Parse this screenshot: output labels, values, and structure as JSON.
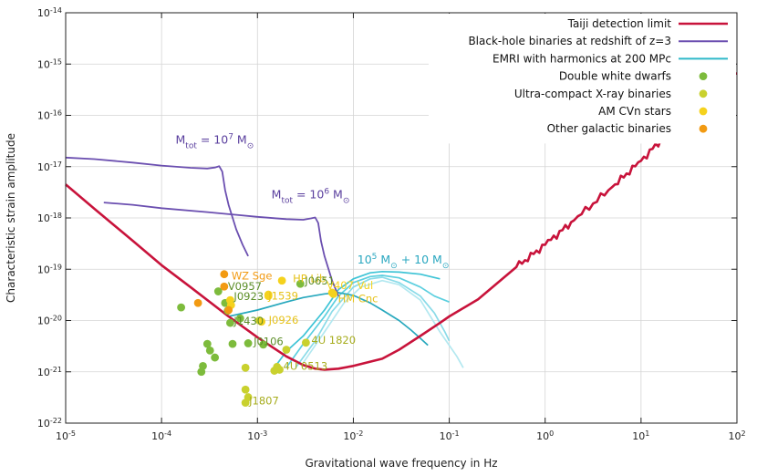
{
  "chart_data": {
    "type": "line",
    "xlabel": "Gravitational wave frequency in Hz",
    "ylabel": "Characteristic strain amplitude",
    "xscale": "log",
    "yscale": "log",
    "xlim": [
      1e-05,
      100
    ],
    "ylim": [
      1e-22,
      1e-14
    ],
    "grid": true,
    "legend_position": "top-right",
    "x_ticks": [
      {
        "value": 1e-05,
        "base": "10",
        "exp": "-5"
      },
      {
        "value": 0.0001,
        "base": "10",
        "exp": "-4"
      },
      {
        "value": 0.001,
        "base": "10",
        "exp": "-3"
      },
      {
        "value": 0.01,
        "base": "10",
        "exp": "-2"
      },
      {
        "value": 0.1,
        "base": "10",
        "exp": "-1"
      },
      {
        "value": 1,
        "base": "10",
        "exp": "0"
      },
      {
        "value": 10,
        "base": "10",
        "exp": "1"
      },
      {
        "value": 100,
        "base": "10",
        "exp": "2"
      }
    ],
    "y_ticks": [
      {
        "value": 1e-14,
        "base": "10",
        "exp": "-14"
      },
      {
        "value": 1e-15,
        "base": "10",
        "exp": "-15"
      },
      {
        "value": 1e-16,
        "base": "10",
        "exp": "-16"
      },
      {
        "value": 1e-17,
        "base": "10",
        "exp": "-17"
      },
      {
        "value": 1e-18,
        "base": "10",
        "exp": "-18"
      },
      {
        "value": 1e-19,
        "base": "10",
        "exp": "-19"
      },
      {
        "value": 1e-20,
        "base": "10",
        "exp": "-20"
      },
      {
        "value": 1e-21,
        "base": "10",
        "exp": "-21"
      },
      {
        "value": 1e-22,
        "base": "10",
        "exp": "-22"
      }
    ],
    "legend": [
      {
        "label": "Taiji detection limit",
        "kind": "line",
        "color": "#c8133b"
      },
      {
        "label": "Black-hole binaries at redshift of z=3",
        "kind": "line",
        "color": "#6b4fb0"
      },
      {
        "label": "EMRI with harmonics at 200 MPc",
        "kind": "line",
        "color": "#2fb9c9"
      },
      {
        "label": "Double white dwarfs",
        "kind": "dot",
        "color": "#7dbb3c"
      },
      {
        "label": "Ultra-compact X-ray binaries",
        "kind": "dot",
        "color": "#c9d12e"
      },
      {
        "label": "AM CVn stars",
        "kind": "dot",
        "color": "#f5d21d"
      },
      {
        "label": "Other galactic binaries",
        "kind": "dot",
        "color": "#f29a12"
      }
    ],
    "series": [
      {
        "name": "Taiji detection limit",
        "color": "#c8133b",
        "points": [
          [
            1e-05,
            4.5e-18
          ],
          [
            2e-05,
            1.5e-18
          ],
          [
            5e-05,
            3.6e-19
          ],
          [
            0.0001,
            1.2e-19
          ],
          [
            0.0002,
            4.5e-20
          ],
          [
            0.0005,
            1.2e-20
          ],
          [
            0.001,
            4.7e-21
          ],
          [
            0.002,
            2e-21
          ],
          [
            0.003,
            1.35e-21
          ],
          [
            0.004,
            1.15e-21
          ],
          [
            0.005,
            1.1e-21
          ],
          [
            0.007,
            1.15e-21
          ],
          [
            0.01,
            1.3e-21
          ],
          [
            0.02,
            1.8e-21
          ],
          [
            0.03,
            2.7e-21
          ],
          [
            0.05,
            5e-21
          ],
          [
            0.08,
            9e-21
          ],
          [
            0.1,
            1.2e-20
          ],
          [
            0.2,
            2.6e-20
          ],
          [
            0.5,
            1.1e-19
          ],
          [
            1,
            3e-19
          ],
          [
            2,
            9e-19
          ],
          [
            5,
            4e-18
          ],
          [
            10,
            1.3e-17
          ],
          [
            20,
            5e-17
          ],
          [
            50,
            2.4e-16
          ],
          [
            100,
            6.5e-16
          ]
        ]
      },
      {
        "name": "",
        "color": "#6b4fb0",
        "annotation": {
          "main": "M",
          "sub": "tot",
          "mid": " = 10",
          "sup": "7",
          "tail": " M",
          "tailsub": "⊙",
          "x": 0.00014,
          "y": 2.8e-17
        },
        "points": [
          [
            1e-05,
            1.5e-17
          ],
          [
            2e-05,
            1.4e-17
          ],
          [
            5e-05,
            1.2e-17
          ],
          [
            0.0001,
            1.05e-17
          ],
          [
            0.0002,
            9.5e-18
          ],
          [
            0.0003,
            9.2e-18
          ],
          [
            0.00036,
            9.6e-18
          ],
          [
            0.0004,
            1.02e-17
          ],
          [
            0.00043,
            8e-18
          ],
          [
            0.00046,
            3.5e-18
          ],
          [
            0.0005,
            1.8e-18
          ],
          [
            0.0006,
            6e-19
          ],
          [
            0.0007,
            3e-19
          ],
          [
            0.0008,
            1.8e-19
          ]
        ]
      },
      {
        "name": "",
        "color": "#6b4fb0",
        "annotation": {
          "main": "M",
          "sub": "tot",
          "mid": " = 10",
          "sup": "6",
          "tail": " M",
          "tailsub": "⊙",
          "x": 0.0014,
          "y": 2.4e-18
        },
        "points": [
          [
            2.5e-05,
            2e-18
          ],
          [
            5e-05,
            1.8e-18
          ],
          [
            0.0001,
            1.55e-18
          ],
          [
            0.0003,
            1.3e-18
          ],
          [
            0.001,
            1.05e-18
          ],
          [
            0.002,
            9.5e-19
          ],
          [
            0.003,
            9.2e-19
          ],
          [
            0.0036,
            9.8e-19
          ],
          [
            0.004,
            1.02e-18
          ],
          [
            0.0043,
            8e-19
          ],
          [
            0.0046,
            3.5e-19
          ],
          [
            0.005,
            1.8e-19
          ],
          [
            0.006,
            6e-20
          ],
          [
            0.007,
            3e-20
          ]
        ]
      },
      {
        "name": "",
        "color": "#27a8bd",
        "annotation": {
          "main": "10",
          "sup": "5",
          "mid": " M",
          "sub": "⊙",
          "tail": " + 10 M",
          "tailsub": "⊙",
          "x": 0.011,
          "y": 1.3e-19
        },
        "points": [
          [
            0.0005,
            1.2e-20
          ],
          [
            0.001,
            1.6e-20
          ],
          [
            0.002,
            2.3e-20
          ],
          [
            0.003,
            2.8e-20
          ],
          [
            0.005,
            3.3e-20
          ],
          [
            0.007,
            3.5e-20
          ],
          [
            0.01,
            3.1e-20
          ],
          [
            0.015,
            2.2e-20
          ],
          [
            0.02,
            1.6e-20
          ],
          [
            0.03,
            1e-20
          ],
          [
            0.04,
            6.5e-21
          ],
          [
            0.05,
            4.5e-21
          ],
          [
            0.06,
            3.3e-21
          ]
        ]
      },
      {
        "name": "",
        "color": "#3ec4d6",
        "points": [
          [
            0.0015,
            1.2e-21
          ],
          [
            0.002,
            2.5e-21
          ],
          [
            0.003,
            5e-21
          ],
          [
            0.005,
            1.6e-20
          ],
          [
            0.007,
            4e-20
          ],
          [
            0.01,
            6.5e-20
          ],
          [
            0.015,
            8.5e-20
          ],
          [
            0.02,
            9e-20
          ],
          [
            0.03,
            8.8e-20
          ],
          [
            0.05,
            8e-20
          ],
          [
            0.08,
            6.5e-20
          ]
        ]
      },
      {
        "name": "",
        "color": "#5ccfdf",
        "points": [
          [
            0.002,
            1.2e-21
          ],
          [
            0.003,
            3.5e-21
          ],
          [
            0.005,
            1.2e-20
          ],
          [
            0.007,
            3e-20
          ],
          [
            0.01,
            5.5e-20
          ],
          [
            0.015,
            7.2e-20
          ],
          [
            0.02,
            7.6e-20
          ],
          [
            0.03,
            6.8e-20
          ],
          [
            0.05,
            4.5e-20
          ],
          [
            0.07,
            3e-20
          ],
          [
            0.1,
            2.3e-20
          ]
        ]
      },
      {
        "name": "",
        "color": "#8adbe8",
        "points": [
          [
            0.0025,
            1.2e-21
          ],
          [
            0.004,
            4e-21
          ],
          [
            0.006,
            1.5e-20
          ],
          [
            0.01,
            4.5e-20
          ],
          [
            0.015,
            6.5e-20
          ],
          [
            0.02,
            7e-20
          ],
          [
            0.03,
            5.5e-20
          ],
          [
            0.05,
            3e-20
          ],
          [
            0.07,
            1.4e-20
          ],
          [
            0.09,
            6e-21
          ],
          [
            0.1,
            4e-21
          ]
        ]
      },
      {
        "name": "",
        "color": "#b3e8f0",
        "points": [
          [
            0.003,
            1.5e-21
          ],
          [
            0.005,
            6e-21
          ],
          [
            0.008,
            2.2e-20
          ],
          [
            0.012,
            4.5e-20
          ],
          [
            0.02,
            6e-20
          ],
          [
            0.03,
            5e-20
          ],
          [
            0.05,
            2.5e-20
          ],
          [
            0.08,
            6e-21
          ],
          [
            0.12,
            2e-21
          ],
          [
            0.14,
            1.2e-21
          ]
        ]
      }
    ],
    "sources": [
      {
        "label": "WZ Sge",
        "x": 0.00045,
        "y": 8e-20,
        "color": "#f29a12",
        "label_color": "#f29a12",
        "label_dx": 8,
        "label_dy": 2
      },
      {
        "label": "HP Lib",
        "x": 0.0018,
        "y": 6e-20,
        "color": "#f5d21d",
        "label_color": "#e6c21a",
        "label_dx": 12,
        "label_dy": -2
      },
      {
        "label": "J0651",
        "x": 0.0028,
        "y": 5.2e-20,
        "color": "#7dbb3c",
        "label_color": "#5c8e28",
        "label_dx": 5,
        "label_dy": -3
      },
      {
        "label": "V407 Vul",
        "x": 0.006,
        "y": 3.5e-20,
        "color": "#f5d21d",
        "label_color": "#f5d21d",
        "label_dx": -6,
        "label_dy": -8
      },
      {
        "label": "HM Cnc",
        "x": 0.0062,
        "y": 3.3e-20,
        "color": "#f5d21d",
        "label_color": "#e6c21a",
        "label_dx": 5,
        "label_dy": 5
      },
      {
        "label": "V0957",
        "x": 0.00045,
        "y": 4.6e-20,
        "color": "#f29a12",
        "label_color": "#5c8e28",
        "label_dx": 4,
        "label_dy": 0
      },
      {
        "label": "J1539",
        "x": 0.0013,
        "y": 3e-20,
        "color": "#f5d21d",
        "label_color": "#e6c21a",
        "label_dx": 0,
        "label_dy": 0
      },
      {
        "label": "J0923",
        "x": 0.00052,
        "y": 2.5e-20,
        "color": "#f5d21d",
        "label_color": "#5c8e28",
        "label_dx": 4,
        "label_dy": -4
      },
      {
        "label": "J1430",
        "x": 0.00052,
        "y": 9e-21,
        "color": "#7dbb3c",
        "label_color": "#5c8e28",
        "label_dx": 4,
        "label_dy": -2
      },
      {
        "label": "J0926",
        "x": 0.0011,
        "y": 9.5e-21,
        "color": "#f5d21d",
        "label_color": "#e6c21a",
        "label_dx": 8,
        "label_dy": -2
      },
      {
        "label": "J0106",
        "x": 0.0008,
        "y": 3.6e-21,
        "color": "#7dbb3c",
        "label_color": "#5c8e28",
        "label_dx": 6,
        "label_dy": -2
      },
      {
        "label": "4U 1820",
        "x": 0.0032,
        "y": 3.7e-21,
        "color": "#c9d12e",
        "label_color": "#a7ad1e",
        "label_dx": 6,
        "label_dy": -3
      },
      {
        "label": "4U 0513",
        "x": 0.0017,
        "y": 1.1e-21,
        "color": "#c9d12e",
        "label_color": "#a7ad1e",
        "label_dx": 4,
        "label_dy": -4
      },
      {
        "label": "J1807",
        "x": 0.00075,
        "y": 2.5e-22,
        "color": "#c9d12e",
        "label_color": "#a7ad1e",
        "label_dx": 4,
        "label_dy": -2
      }
    ],
    "points_dwd": [
      [
        0.00016,
        1.8e-20
      ],
      [
        0.0003,
        3.5e-21
      ],
      [
        0.00032,
        2.6e-21
      ],
      [
        0.00027,
        1.3e-21
      ],
      [
        0.00026,
        1e-21
      ],
      [
        0.00036,
        1.9e-21
      ],
      [
        0.00039,
        3.7e-20
      ],
      [
        0.00046,
        2.2e-20
      ],
      [
        0.00049,
        1.55e-20
      ],
      [
        0.00055,
        3.5e-21
      ],
      [
        0.00066,
        1.1e-20
      ],
      [
        0.00115,
        3.4e-21
      ]
    ],
    "points_ucxb": [
      [
        0.00075,
        4.5e-22
      ],
      [
        0.0008,
        3.2e-22
      ],
      [
        0.0015,
        1.05e-21
      ],
      [
        0.0016,
        1.25e-21
      ],
      [
        0.002,
        2.7e-21
      ],
      [
        0.00105,
        1e-20
      ],
      [
        0.00075,
        1.2e-21
      ]
    ],
    "points_amcvn": [
      [
        0.00053,
        2e-20
      ],
      [
        0.0013,
        3.2e-20
      ]
    ],
    "points_other": [
      [
        0.00024,
        2.2e-20
      ],
      [
        0.0005,
        1.6e-20
      ]
    ]
  }
}
